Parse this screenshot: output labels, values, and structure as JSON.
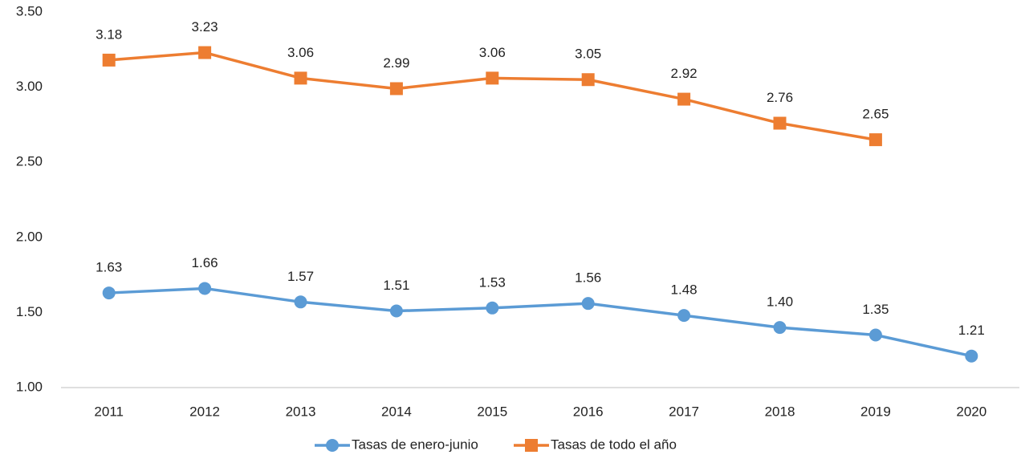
{
  "chart_data": {
    "type": "line",
    "categories": [
      "2011",
      "2012",
      "2013",
      "2014",
      "2015",
      "2016",
      "2017",
      "2018",
      "2019",
      "2020"
    ],
    "series": [
      {
        "name": "Tasas de enero-junio",
        "color": "#5b9bd5",
        "marker": "circle",
        "values": [
          1.63,
          1.66,
          1.57,
          1.51,
          1.53,
          1.56,
          1.48,
          1.4,
          1.35,
          1.21
        ],
        "value_labels": [
          "1.63",
          "1.66",
          "1.57",
          "1.51",
          "1.53",
          "1.56",
          "1.48",
          "1.40",
          "1.35",
          "1.21"
        ]
      },
      {
        "name": "Tasas de todo el año",
        "color": "#ed7d31",
        "marker": "square",
        "values": [
          3.18,
          3.23,
          3.06,
          2.99,
          3.06,
          3.05,
          2.92,
          2.76,
          2.65,
          null
        ],
        "value_labels": [
          "3.18",
          "3.23",
          "3.06",
          "2.99",
          "3.06",
          "3.05",
          "2.92",
          "2.76",
          "2.65",
          null
        ]
      }
    ],
    "ylim": [
      1,
      3.5
    ],
    "yticks": [
      {
        "value": 1,
        "label": "1.00"
      },
      {
        "value": 1.5,
        "label": "1.50"
      },
      {
        "value": 2,
        "label": "2.00"
      },
      {
        "value": 2.5,
        "label": "2.50"
      },
      {
        "value": 3,
        "label": "3.00"
      },
      {
        "value": 3.5,
        "label": "3.50"
      }
    ],
    "grid": false,
    "legend": "bottom"
  }
}
